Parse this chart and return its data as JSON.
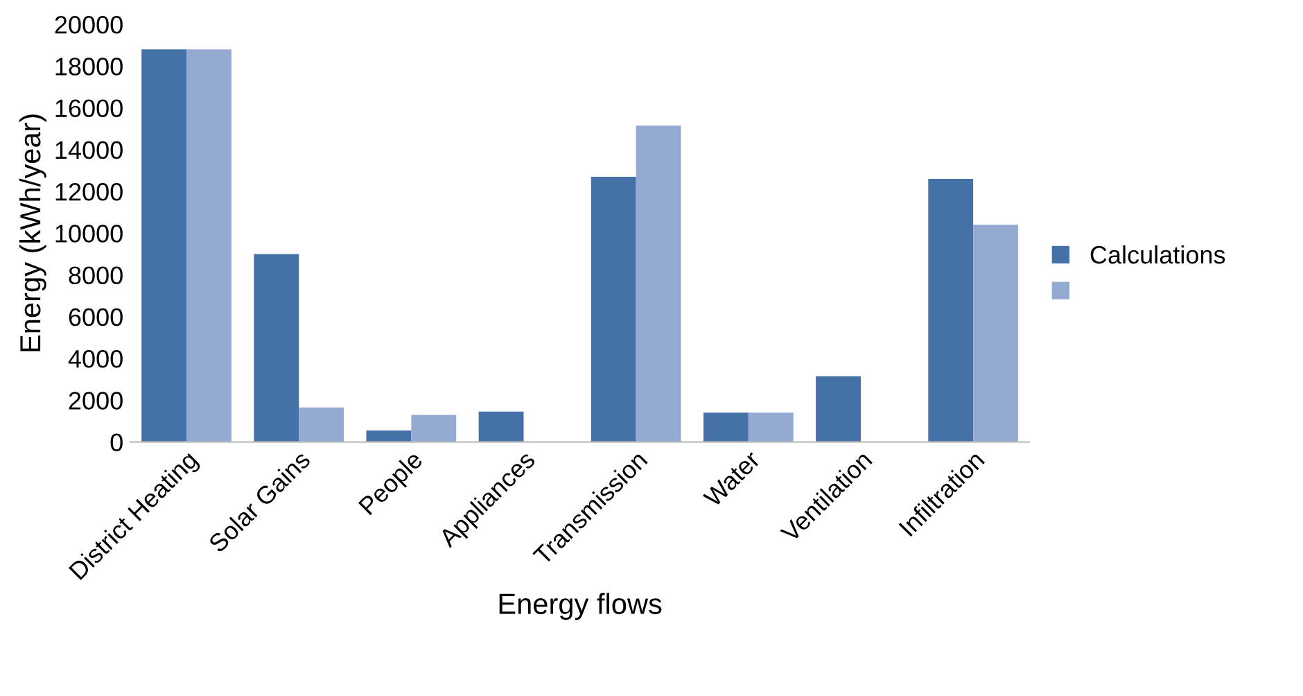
{
  "chart_data": {
    "type": "bar",
    "xlabel": "Energy flows",
    "ylabel": "Energy (kWh/year)",
    "categories": [
      "District Heating",
      "Solar Gains",
      "People",
      "Appliances",
      "Transmission",
      "Water",
      "Ventilation",
      "Infiltration"
    ],
    "series": [
      {
        "name": "Calculations",
        "color": "#4472a8",
        "values": [
          18800,
          9000,
          550,
          1450,
          12700,
          1400,
          3150,
          12600
        ]
      },
      {
        "color": "#94aad3",
        "values": [
          18800,
          1650,
          1300,
          0,
          15150,
          1400,
          0,
          10400
        ]
      }
    ],
    "ylim": [
      0,
      20000
    ],
    "yticks": [
      0,
      2000,
      4000,
      6000,
      8000,
      10000,
      12000,
      14000,
      16000,
      18000,
      20000
    ],
    "grid": false,
    "legend": "right"
  }
}
